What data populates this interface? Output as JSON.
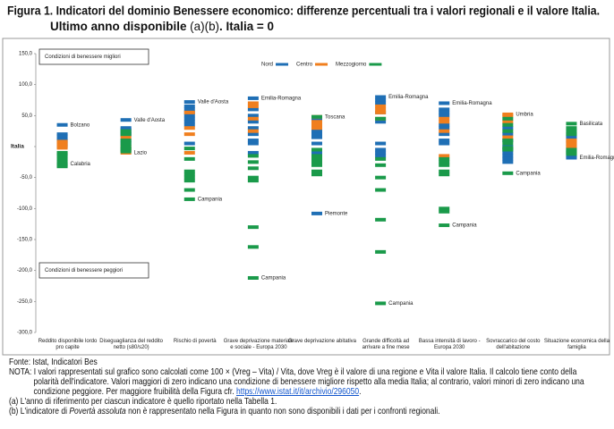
{
  "chart_data": {
    "type": "strip",
    "title": "Figura 1. Indicatori del dominio Benessere economico: differenze percentuali tra i valori regionali e il valore Italia.",
    "subtitle_parts": [
      "Ultimo anno disponibile ",
      "(a)(b)",
      ". Italia = 0"
    ],
    "categories": [
      "Reddito disponibile lordo pro capite",
      "Diseguaglianza del reddito netto (s80/s20)",
      "Rischio di povertà",
      "Grave deprivazione materiale e sociale - Europa 2030",
      "Grave deprivazione abitativa",
      "Grande difficoltà ad arrivare a fine mese",
      "Bassa intensità di lavoro - Europa 2030",
      "Sovraccarico del costo dell'abitazione",
      "Situazione economica della famiglia"
    ],
    "series": [
      {
        "name": "Nord",
        "color": "#1f6fb5",
        "values": [
          [
            35,
            20,
            17,
            12,
            10,
            8,
            5,
            2,
            0
          ],
          [
            43,
            30,
            28,
            25,
            22,
            20,
            18,
            10,
            5
          ],
          [
            72,
            65,
            60,
            55,
            50,
            45,
            40,
            35,
            5
          ],
          [
            78,
            60,
            50,
            40,
            30,
            20,
            10,
            5,
            -10
          ],
          [
            45,
            40,
            25,
            20,
            15,
            5,
            -10,
            -15,
            -108
          ],
          [
            80,
            75,
            70,
            55,
            40,
            5,
            -5,
            -10,
            -15
          ],
          [
            70,
            60,
            55,
            50,
            35,
            30,
            20,
            10,
            5
          ],
          [
            30,
            20,
            10,
            0,
            -5,
            -10,
            -15,
            -20,
            -25
          ],
          [
            20,
            15,
            10,
            5,
            0,
            -5,
            -10,
            -15,
            -18
          ]
        ]
      },
      {
        "name": "Centro",
        "color": "#f07f1e",
        "values": [
          [
            8,
            5,
            2,
            -2
          ],
          [
            15,
            0,
            -5,
            -10
          ],
          [
            55,
            30,
            20,
            -10
          ],
          [
            70,
            65,
            45,
            25
          ],
          [
            48,
            40,
            35,
            30
          ],
          [
            65,
            60,
            55,
            45
          ],
          [
            45,
            40,
            25,
            -15
          ],
          [
            52,
            50,
            40,
            15
          ],
          [
            10,
            8,
            5,
            0
          ]
        ]
      },
      {
        "name": "Mezzogiorno",
        "color": "#1a9a4a",
        "values": [
          [
            -10,
            -12,
            -15,
            -20,
            -25,
            -28,
            -30,
            -32
          ],
          [
            25,
            20,
            10,
            5,
            0,
            -3,
            -5,
            -8
          ],
          [
            -3,
            -20,
            -40,
            -45,
            -50,
            -55,
            -70,
            -85
          ],
          [
            -15,
            -25,
            -35,
            -50,
            -55,
            -130,
            -162,
            -212
          ],
          [
            48,
            -5,
            -15,
            -20,
            -25,
            -30,
            -40,
            -45
          ],
          [
            45,
            -20,
            -30,
            -50,
            -70,
            -118,
            -170,
            -253
          ],
          [
            -20,
            -25,
            -30,
            -40,
            -45,
            -100,
            -105,
            -127
          ],
          [
            45,
            35,
            25,
            10,
            5,
            -2,
            -5,
            -43
          ],
          [
            37,
            30,
            25,
            20,
            -5,
            -8,
            -10,
            -12
          ]
        ]
      }
    ],
    "annotations": [
      {
        "text": "Bolzano",
        "category": 0,
        "value": 35
      },
      {
        "text": "Calabria",
        "category": 0,
        "value": -28
      },
      {
        "text": "Valle d'Aosta",
        "category": 1,
        "value": 43
      },
      {
        "text": "Lazio",
        "category": 1,
        "value": -10
      },
      {
        "text": "Valle d'Aosta",
        "category": 2,
        "value": 72
      },
      {
        "text": "Campania",
        "category": 2,
        "value": -85
      },
      {
        "text": "Emilia-Romagna",
        "category": 3,
        "value": 78
      },
      {
        "text": "Campania",
        "category": 3,
        "value": -212
      },
      {
        "text": "Toscana",
        "category": 4,
        "value": 48
      },
      {
        "text": "Piemonte",
        "category": 4,
        "value": -108
      },
      {
        "text": "Emilia-Romagna",
        "category": 5,
        "value": 80
      },
      {
        "text": "Campania",
        "category": 5,
        "value": -253
      },
      {
        "text": "Emilia-Romagna",
        "category": 6,
        "value": 70
      },
      {
        "text": "Campania",
        "category": 6,
        "value": -127
      },
      {
        "text": "Umbria",
        "category": 7,
        "value": 52
      },
      {
        "text": "Campania",
        "category": 7,
        "value": -43
      },
      {
        "text": "Basilicata",
        "category": 8,
        "value": 37
      },
      {
        "text": "Emilia-Romagna",
        "category": 8,
        "value": -18
      }
    ],
    "boxes": [
      "Condizioni di benessere migliori",
      "Condizioni di benessere peggiori"
    ],
    "ylim": [
      -300,
      150
    ],
    "yticks": [
      {
        "value": 150,
        "label": "150,0"
      },
      {
        "value": 100,
        "label": "100,0"
      },
      {
        "value": 50,
        "label": "50,0"
      },
      {
        "value": 0,
        "label": "Italia"
      },
      {
        "value": -50,
        "label": "-50,0"
      },
      {
        "value": -100,
        "label": "-100,0"
      },
      {
        "value": -150,
        "label": "-150,0"
      },
      {
        "value": -200,
        "label": "-200,0"
      },
      {
        "value": -250,
        "label": "-250,0"
      },
      {
        "value": -300,
        "label": "-300,0"
      }
    ],
    "grid": false
  },
  "notes": {
    "source": "Fonte: Istat, Indicatori Bes",
    "nota": "NOTA: I valori rappresentati sul grafico sono calcolati come 100 × (Vreg – Vita) / Vita, dove Vreg è il valore di una regione e Vita il valore Italia. Il calcolo tiene conto della polarità dell'indicatore. Valori maggiori di zero indicano una condizione di benessere migliore rispetto alla media Italia; al contrario, valori minori di zero indicano una condizione peggiore. Per maggiore fruibilità della Figura cfr. ",
    "link": "https://www.istat.it/it/archivio/296050",
    "nota_end": ".",
    "a": "(a) L'anno di riferimento per ciascun indicatore è quello riportato nella Tabella 1.",
    "b_parts": [
      "(b) L'indicatore di ",
      "Povertà assoluta",
      " non è rappresentato nella Figura in quanto non sono disponibili i dati per i confronti regionali."
    ]
  }
}
